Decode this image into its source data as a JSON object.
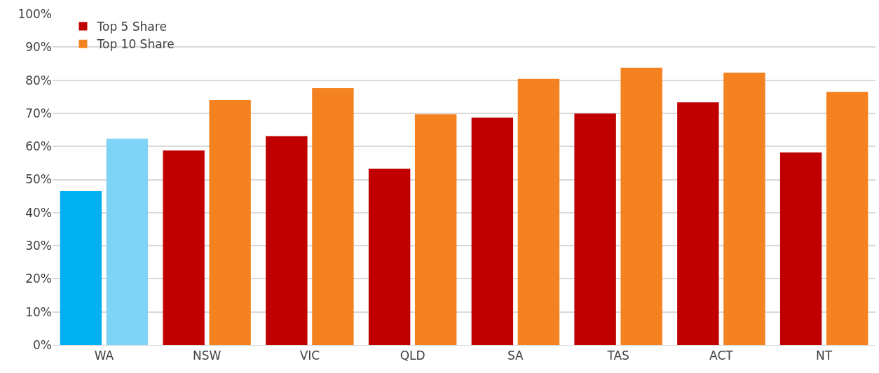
{
  "chart_data": {
    "type": "bar",
    "categories": [
      "WA",
      "NSW",
      "VIC",
      "QLD",
      "SA",
      "TAS",
      "ACT",
      "NT"
    ],
    "series": [
      {
        "name": "Top 5 Share",
        "color": "#c00000",
        "colors": [
          "#00b0f0",
          "#c00000",
          "#c00000",
          "#c00000",
          "#c00000",
          "#c00000",
          "#c00000",
          "#c00000"
        ],
        "values": [
          46.5,
          58.8,
          63.1,
          53.3,
          68.7,
          69.9,
          73.3,
          58.2
        ]
      },
      {
        "name": "Top 10 Share",
        "color": "#f58220",
        "colors": [
          "#7fd3f7",
          "#f58220",
          "#f58220",
          "#f58220",
          "#f58220",
          "#f58220",
          "#f58220",
          "#f58220"
        ],
        "values": [
          62.3,
          74.0,
          77.6,
          69.7,
          80.4,
          83.8,
          82.3,
          76.5
        ]
      }
    ],
    "ylim": [
      0,
      100
    ],
    "yticks": [
      {
        "value": 0,
        "label": "0%"
      },
      {
        "value": 10,
        "label": "10%"
      },
      {
        "value": 20,
        "label": "20%"
      },
      {
        "value": 30,
        "label": "30%"
      },
      {
        "value": 40,
        "label": "40%"
      },
      {
        "value": 50,
        "label": "50%"
      },
      {
        "value": 60,
        "label": "60%"
      },
      {
        "value": 70,
        "label": "70%"
      },
      {
        "value": 80,
        "label": "80%"
      },
      {
        "value": 90,
        "label": "90%"
      },
      {
        "value": 100,
        "label": "100%"
      }
    ],
    "grid": "y",
    "legend": "top left"
  }
}
